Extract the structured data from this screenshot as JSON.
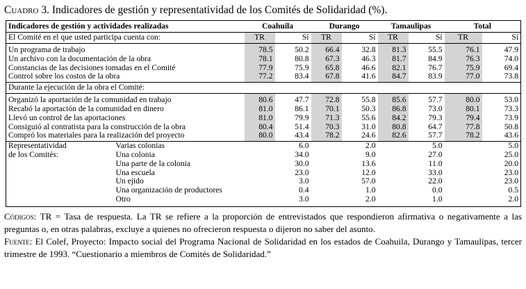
{
  "caption": {
    "prefix": "Cuadro",
    "rest": " 3. Indicadores de gestión y representatividad de los Comités de Solidaridad (%)."
  },
  "header": {
    "first_col": "Indicadores de gestión y actividades realizadas",
    "groups": [
      "Coahuila",
      "Durango",
      "Tamaulipas",
      "Total"
    ],
    "sub_label": "El Comité en el que usted participa cuenta con:",
    "sub_cols": [
      "TR",
      "Sí",
      "TR",
      "Sí",
      "TR",
      "Sí",
      "TR",
      "Sí"
    ]
  },
  "section1": [
    {
      "label": "Un programa de trabajo",
      "values": [
        "78.5",
        "50.2",
        "66.4",
        "32.8",
        "81.3",
        "55.5",
        "76.1",
        "47.9"
      ]
    },
    {
      "label": "Un archivo con la documentación de la obra",
      "values": [
        "78.1",
        "80.8",
        "67.3",
        "46.3",
        "81.7",
        "84.9",
        "76.3",
        "74.0"
      ]
    },
    {
      "label": "Constancias de las decisiones tomadas en el Comité",
      "values": [
        "77.9",
        "75.9",
        "65.8",
        "46.6",
        "82.1",
        "76.7",
        "75.9",
        "69.4"
      ]
    },
    {
      "label": "Control sobre los costos de la obra",
      "values": [
        "77.2",
        "83.4",
        "67.8",
        "41.6",
        "84.7",
        "83.9",
        "77.0",
        "73.8"
      ]
    }
  ],
  "section2_label": "Durante la ejecución de la obra el Comité:",
  "section2": [
    {
      "label": "Organizó la aportación de la comunidad en trabajo",
      "values": [
        "80.6",
        "47.7",
        "72.8",
        "55.8",
        "85.6",
        "57.7",
        "80.0",
        "53.0"
      ]
    },
    {
      "label": "Recabó la aportación de la comunidad en dinero",
      "values": [
        "81.0",
        "86.1",
        "70.1",
        "50.3",
        "86.8",
        "73.0",
        "80.1",
        "73.3"
      ]
    },
    {
      "label": "Llevó un control de las aportaciones",
      "values": [
        "81.0",
        "79.9",
        "71.3",
        "55.6",
        "84.2",
        "79.3",
        "79.4",
        "73.9"
      ]
    },
    {
      "label": "Consiguió al contratista para la construcción de la obra",
      "values": [
        "80.4",
        "51.4",
        "70.3",
        "31.0",
        "80.8",
        "64.7",
        "77.8",
        "50.8"
      ]
    },
    {
      "label": "Compró los materiales para la realización del proyecto",
      "values": [
        "80.0",
        "43.4",
        "78.2",
        "24.6",
        "82.6",
        "57.7",
        "78.2",
        "43.6"
      ]
    }
  ],
  "section3": {
    "label_line1": "Representatividad",
    "label_line2": "de los Comités:",
    "rows": [
      {
        "label": "Varias colonias",
        "values": [
          "6.0",
          "2.0",
          "5.0",
          "5.0"
        ]
      },
      {
        "label": "Una colonia",
        "values": [
          "34.0",
          "9.0",
          "27.0",
          "25.0"
        ]
      },
      {
        "label": "Una parte de la colonia",
        "values": [
          "30.0",
          "13.6",
          "11.0",
          "20.0"
        ]
      },
      {
        "label": "Una escuela",
        "values": [
          "23.0",
          "12.0",
          "33.0",
          "23.0"
        ]
      },
      {
        "label": "Un ejido",
        "values": [
          "3.0",
          "57.0",
          "22.0",
          "23.0"
        ]
      },
      {
        "label": "Una organización de productores",
        "values": [
          "0.4",
          "1.0",
          "0.0",
          "0.5"
        ]
      },
      {
        "label": "Otro",
        "values": [
          "3.0",
          "2.0",
          "1.0",
          "2.0"
        ]
      }
    ]
  },
  "notes": {
    "codes_label": "Códigos",
    "codes_text": ": TR = Tasa de respuesta. La TR se refiere a la proporción de entrevistados que respondieron afirmativa o negativamente a las preguntas o, en otras palabras, excluye a quienes no ofrecieron respuesta o dijeron no saber del asunto.",
    "source_label": "Fuente",
    "source_text": ": El Colef, Proyecto: Impacto social del Programa Nacional de Solidaridad en los estados de Coahuila, Durango y Tamaulipas, tercer trimestre de 1993. “Cuestionario a miembros de Comités de Solidaridad.”"
  },
  "colors": {
    "shade": "#d4d4d4",
    "text": "#000000"
  }
}
